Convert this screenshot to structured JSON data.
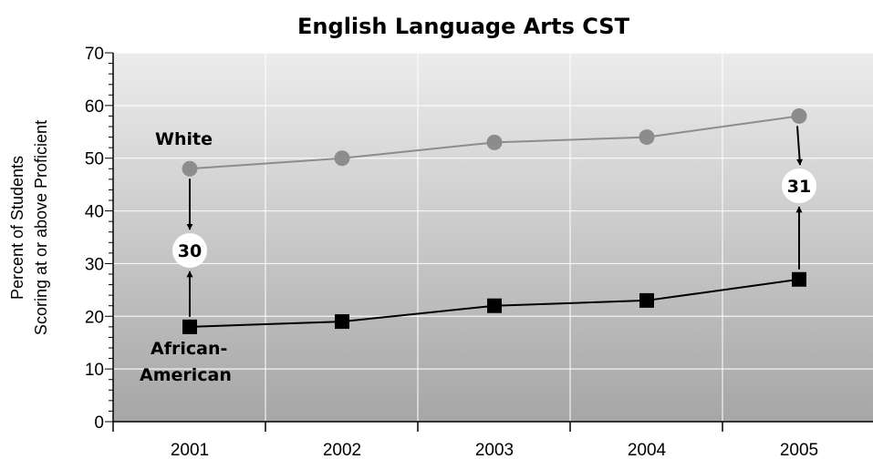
{
  "chart_data": {
    "type": "line",
    "title": "English Language Arts CST",
    "xlabel": "",
    "ylabel_lines": [
      "Percent of Students",
      "Scoring at or above Proficient"
    ],
    "categories": [
      "2001",
      "2002",
      "2003",
      "2004",
      "2005"
    ],
    "ylim": [
      0,
      70
    ],
    "yticks": [
      0,
      10,
      20,
      30,
      40,
      50,
      60,
      70
    ],
    "grid": true,
    "series": [
      {
        "name_lines": [
          "White"
        ],
        "values": [
          48,
          50,
          53,
          54,
          58
        ],
        "color": "#8c8c8c",
        "marker": "circle"
      },
      {
        "name_lines": [
          "African-",
          "American"
        ],
        "values": [
          18,
          19,
          22,
          23,
          27
        ],
        "color": "#000000",
        "marker": "square"
      }
    ],
    "gap_annotations": [
      {
        "category": "2001",
        "label": "30"
      },
      {
        "category": "2005",
        "label": "31"
      }
    ]
  }
}
